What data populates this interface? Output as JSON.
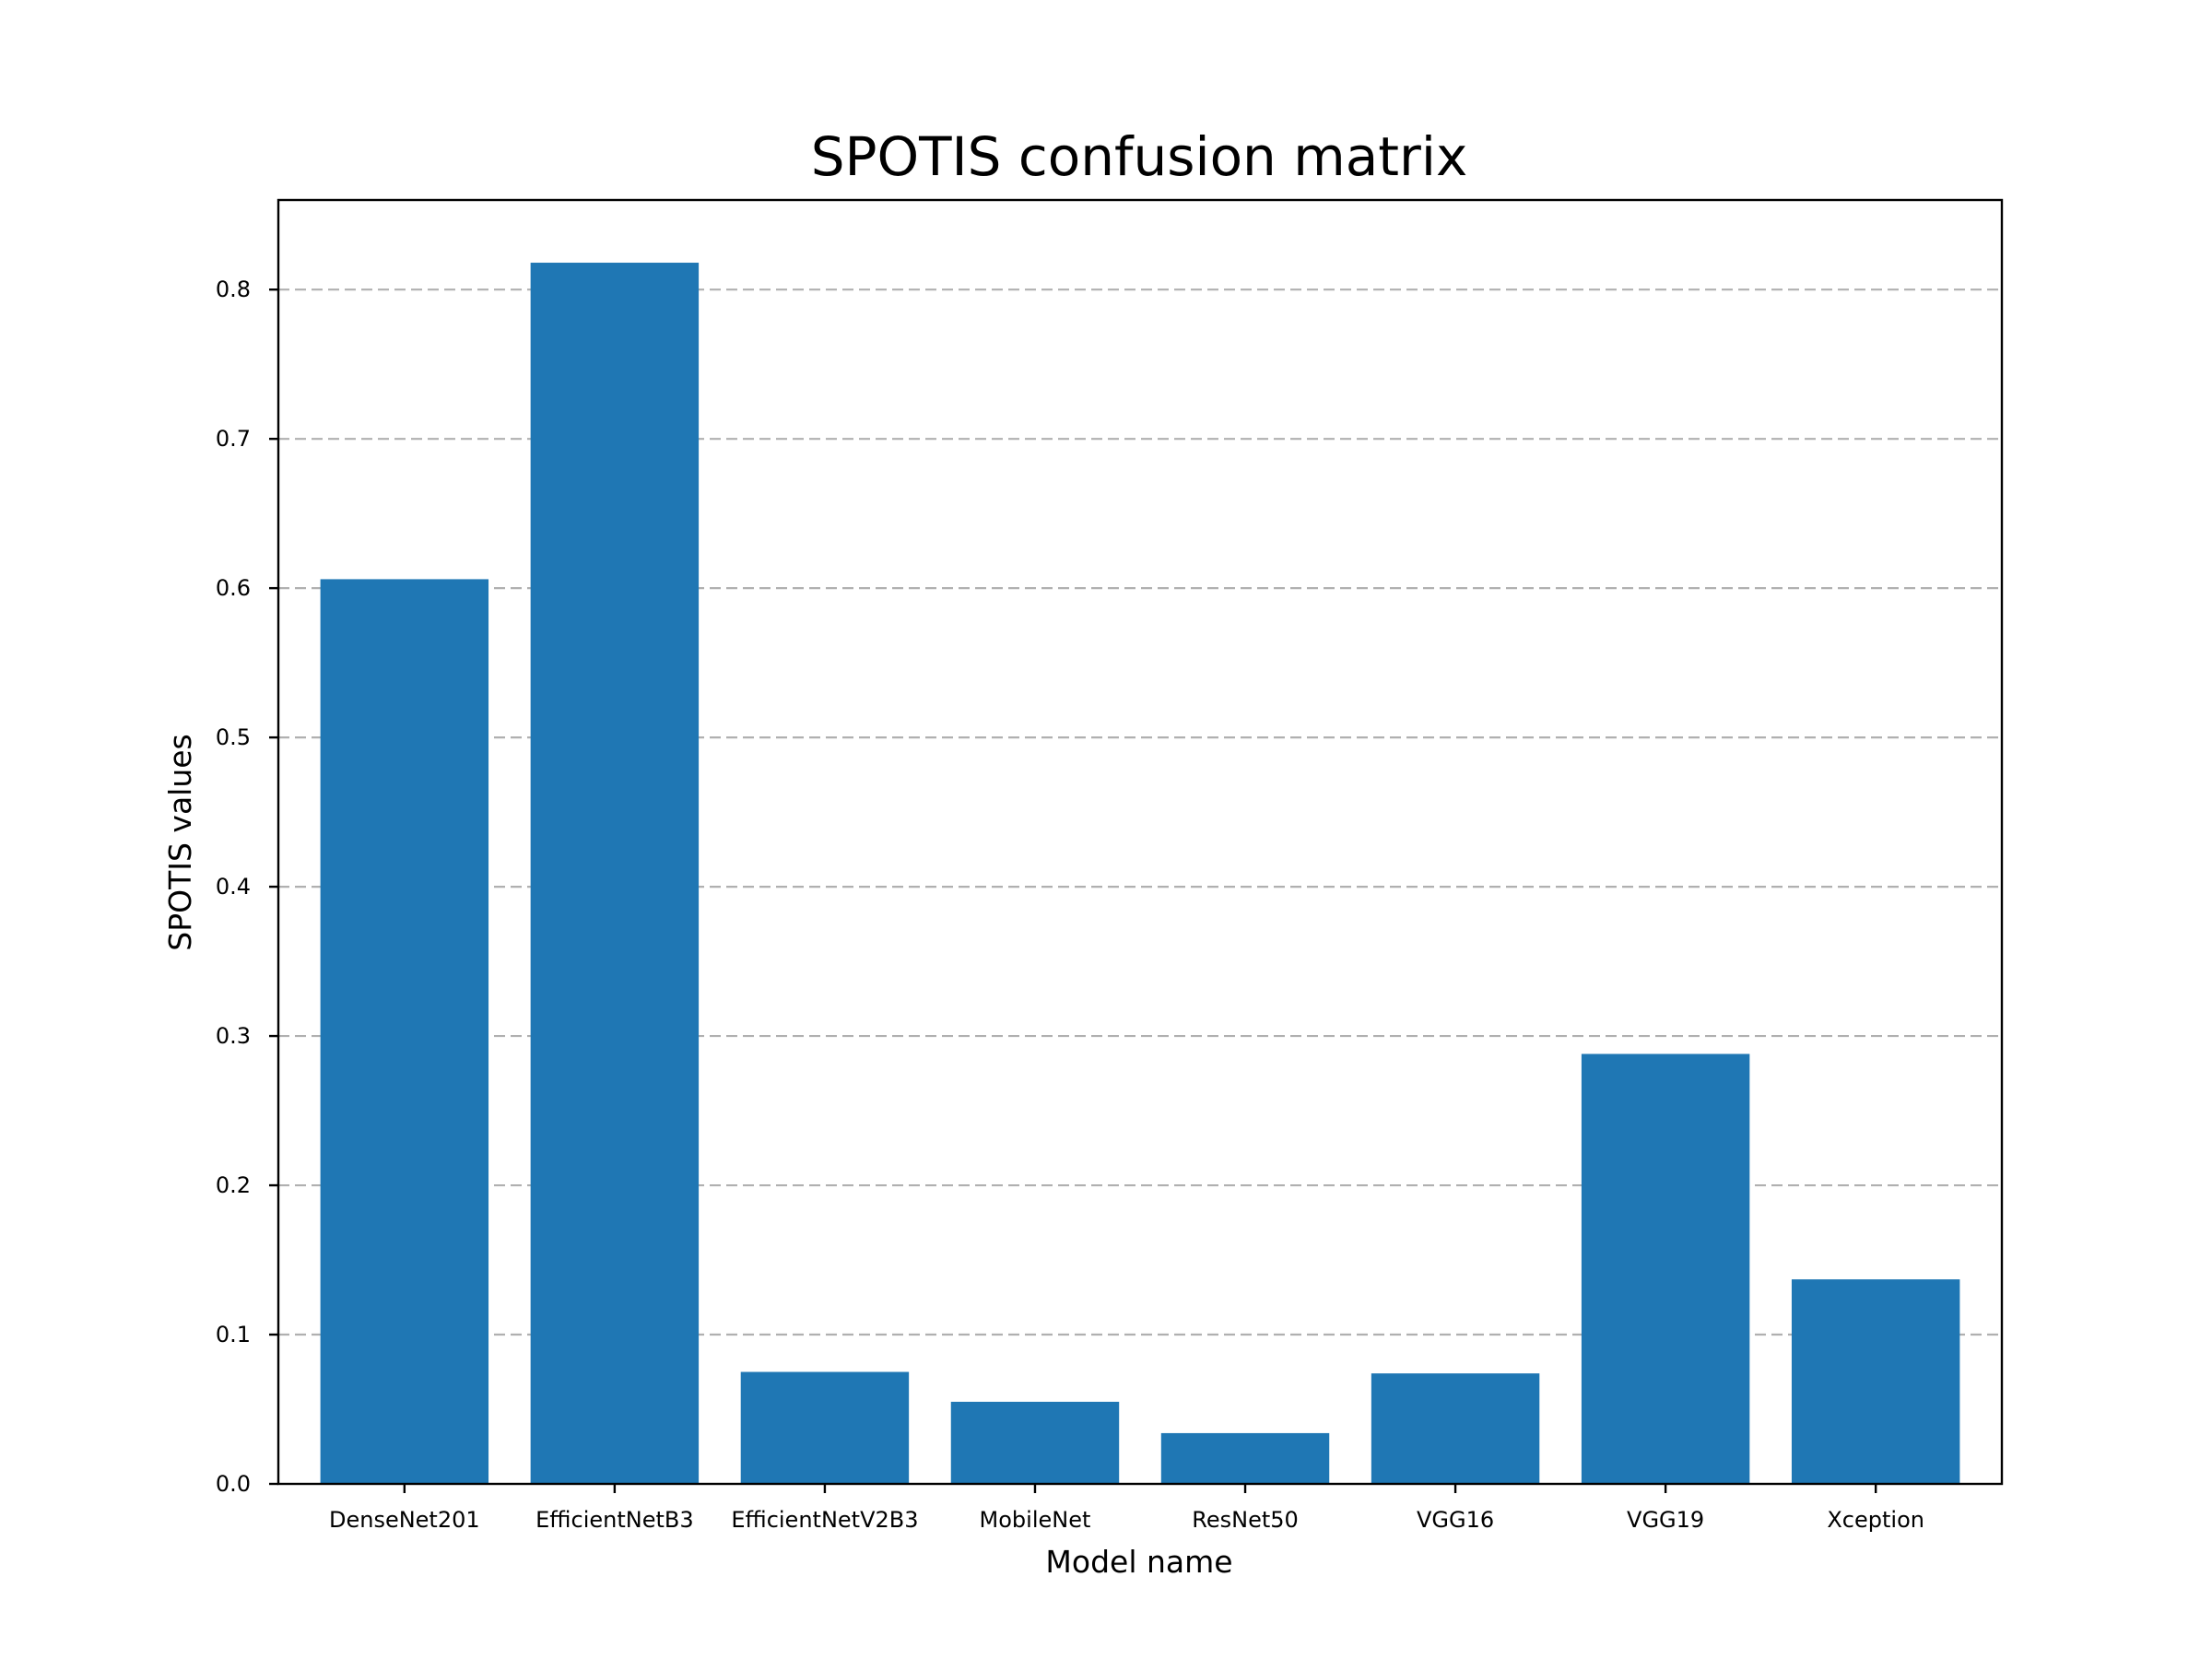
{
  "chart_data": {
    "type": "bar",
    "title": "SPOTIS confusion matrix",
    "xlabel": "Model name",
    "ylabel": "SPOTIS values",
    "categories": [
      "DenseNet201",
      "EfficientNetB3",
      "EfficientNetV2B3",
      "MobileNet",
      "ResNet50",
      "VGG16",
      "VGG19",
      "Xception"
    ],
    "values": [
      0.606,
      0.818,
      0.075,
      0.055,
      0.034,
      0.074,
      0.288,
      0.137
    ],
    "ylim": [
      0,
      0.86
    ],
    "yticks": [
      0.0,
      0.1,
      0.2,
      0.3,
      0.4,
      0.5,
      0.6,
      0.7,
      0.8
    ],
    "ytick_labels": [
      "0.0",
      "0.1",
      "0.2",
      "0.3",
      "0.4",
      "0.5",
      "0.6",
      "0.7",
      "0.8"
    ],
    "grid": "y-dashed",
    "bar_color": "#1f77b4",
    "grid_color": "#b0b0b0"
  }
}
